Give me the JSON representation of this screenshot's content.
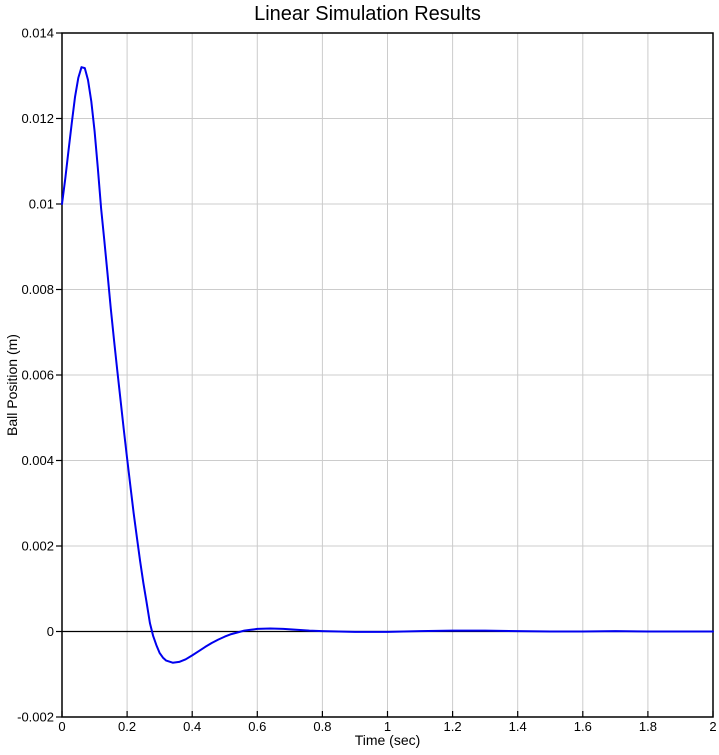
{
  "chart_data": {
    "type": "line",
    "title": "Linear Simulation Results",
    "xlabel": "Time (sec)",
    "ylabel": "Ball Position (m)",
    "xlim": [
      0,
      2
    ],
    "ylim": [
      -0.002,
      0.014
    ],
    "xticks": [
      0,
      0.2,
      0.4,
      0.6,
      0.8,
      1,
      1.2,
      1.4,
      1.6,
      1.8,
      2
    ],
    "xtick_labels": [
      "0",
      "0.2",
      "0.4",
      "0.6",
      "0.8",
      "1",
      "1.2",
      "1.4",
      "1.6",
      "1.8",
      "2"
    ],
    "yticks": [
      -0.002,
      0,
      0.002,
      0.004,
      0.006,
      0.008,
      0.01,
      0.012,
      0.014
    ],
    "ytick_labels": [
      "-0.002",
      "0",
      "0.002",
      "0.004",
      "0.006",
      "0.008",
      "0.01",
      "0.012",
      "0.014"
    ],
    "grid": true,
    "legend_position": "none",
    "zero_reference_line": true,
    "colors": {
      "line": "#0000EE",
      "grid": "#CCCCCC",
      "axis": "#000000",
      "background": "#FFFFFF",
      "text": "#000000"
    },
    "series": [
      {
        "name": "ball-position",
        "x": [
          0.0,
          0.01,
          0.02,
          0.03,
          0.04,
          0.05,
          0.06,
          0.07,
          0.08,
          0.09,
          0.1,
          0.11,
          0.12,
          0.13,
          0.14,
          0.15,
          0.16,
          0.17,
          0.18,
          0.19,
          0.2,
          0.21,
          0.22,
          0.23,
          0.24,
          0.25,
          0.26,
          0.27,
          0.28,
          0.29,
          0.3,
          0.31,
          0.32,
          0.34,
          0.36,
          0.38,
          0.4,
          0.42,
          0.44,
          0.46,
          0.48,
          0.5,
          0.52,
          0.54,
          0.56,
          0.58,
          0.6,
          0.64,
          0.68,
          0.72,
          0.76,
          0.8,
          0.85,
          0.9,
          1.0,
          1.1,
          1.2,
          1.3,
          1.4,
          1.5,
          1.6,
          1.7,
          1.8,
          1.9,
          2.0
        ],
        "y": [
          0.01,
          0.0106,
          0.01125,
          0.0119,
          0.0125,
          0.01295,
          0.0132,
          0.01318,
          0.0129,
          0.0124,
          0.0117,
          0.01085,
          0.0099,
          0.00915,
          0.00835,
          0.00755,
          0.0068,
          0.0061,
          0.0054,
          0.00472,
          0.00405,
          0.0034,
          0.00278,
          0.0022,
          0.00165,
          0.00113,
          0.00068,
          0.0002,
          -0.0001,
          -0.00032,
          -0.0005,
          -0.00061,
          -0.00068,
          -0.00073,
          -0.00071,
          -0.00065,
          -0.00056,
          -0.00046,
          -0.00036,
          -0.00027,
          -0.00019,
          -0.00012,
          -6e-05,
          -2e-05,
          2e-05,
          4e-05,
          6e-05,
          7e-05,
          6e-05,
          4e-05,
          2e-05,
          1e-05,
          0.0,
          -1e-05,
          -1e-05,
          1e-05,
          2e-05,
          2e-05,
          1e-05,
          0.0,
          0.0,
          1e-05,
          0.0,
          0.0,
          0.0
        ]
      }
    ]
  }
}
